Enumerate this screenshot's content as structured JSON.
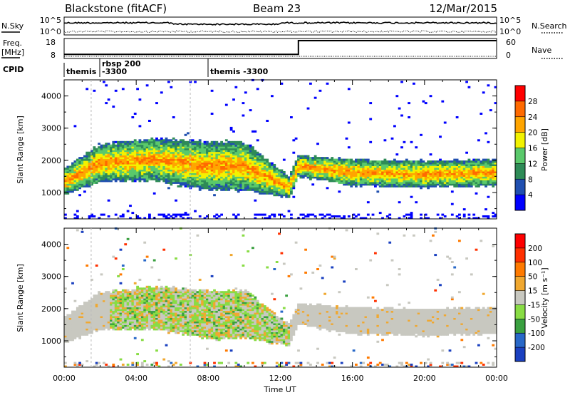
{
  "header": {
    "station": "Blackstone (fitACF)",
    "beam": "Beam 23",
    "date": "12/Mar/2015"
  },
  "noise_panel": {
    "left_label": "N.Sky",
    "right_label": "N.Search",
    "left_ticks": [
      "10^5",
      "10^0"
    ],
    "right_ticks": [
      "10^5",
      "10^0"
    ]
  },
  "freq_panel": {
    "left_label_1": "Freq.",
    "left_label_2": "[MHz]",
    "left_ticks": [
      "18",
      "8"
    ],
    "right_label": "Nave",
    "right_ticks": [
      "60",
      "0"
    ]
  },
  "cpid_panel": {
    "label": "CPID",
    "entries": [
      {
        "text": "themis",
        "hours": 0.1
      },
      {
        "text": "rbsp 200",
        "hours": 1.5
      },
      {
        "text": "-3300",
        "hours": 1.5
      },
      {
        "text": "themis -3300",
        "hours": 7.0
      }
    ]
  },
  "power_panel": {
    "ylabel": "Slant Range [km]",
    "colorbar_label": "Power [dB]",
    "colorbar_ticks": [
      "28",
      "24",
      "20",
      "16",
      "12",
      "8",
      "4"
    ],
    "colors": [
      "#0000ff",
      "#204fb0",
      "#2e8b57",
      "#5ac96b",
      "#f2f200",
      "#ffa500",
      "#ff6a00",
      "#ff0000"
    ]
  },
  "velocity_panel": {
    "ylabel": "Slant Range [km]",
    "colorbar_label": "Velocity [m s⁻¹]",
    "colorbar_ticks": [
      "200",
      "100",
      "50",
      "15",
      "-15",
      "-50",
      "-100",
      "-200"
    ],
    "colors": [
      "#1a40c0",
      "#2868c8",
      "#3aa040",
      "#88dc44",
      "#c8c8c0",
      "#f0a830",
      "#ff7a00",
      "#ff3000",
      "#ff0000"
    ]
  },
  "x_axis": {
    "label": "Time UT",
    "ticks": [
      "00:00",
      "04:00",
      "08:00",
      "12:00",
      "16:00",
      "20:00",
      "00:00"
    ]
  },
  "y_axis": {
    "ticks": [
      "4000",
      "3000",
      "2000",
      "1000"
    ]
  },
  "chart_data": {
    "type": "heatmap",
    "title": "Blackstone (fitACF)",
    "x_range_hours": [
      0,
      24
    ],
    "y_range_km": [
      180,
      4500
    ],
    "power_scale_db": [
      0,
      30
    ],
    "velocity_scale": [
      -250,
      250
    ],
    "frequency_mhz": [
      {
        "from_hour": 0,
        "to_hour": 13,
        "value": 10
      },
      {
        "from_hour": 13,
        "to_hour": 24,
        "value": 18
      }
    ],
    "backscatter_band_km": [
      {
        "hour": 0,
        "center": 1300,
        "spread": 500
      },
      {
        "hour": 2,
        "center": 1900,
        "spread": 700
      },
      {
        "hour": 5,
        "center": 2000,
        "spread": 800
      },
      {
        "hour": 8,
        "center": 1800,
        "spread": 900
      },
      {
        "hour": 10,
        "center": 1800,
        "spread": 900
      },
      {
        "hour": 12.5,
        "center": 1150,
        "spread": 400
      },
      {
        "hour": 13,
        "center": 1800,
        "spread": 400
      },
      {
        "hour": 16,
        "center": 1600,
        "spread": 500
      },
      {
        "hour": 20,
        "center": 1550,
        "spread": 500
      },
      {
        "hour": 24,
        "center": 1600,
        "spread": 500
      }
    ]
  }
}
